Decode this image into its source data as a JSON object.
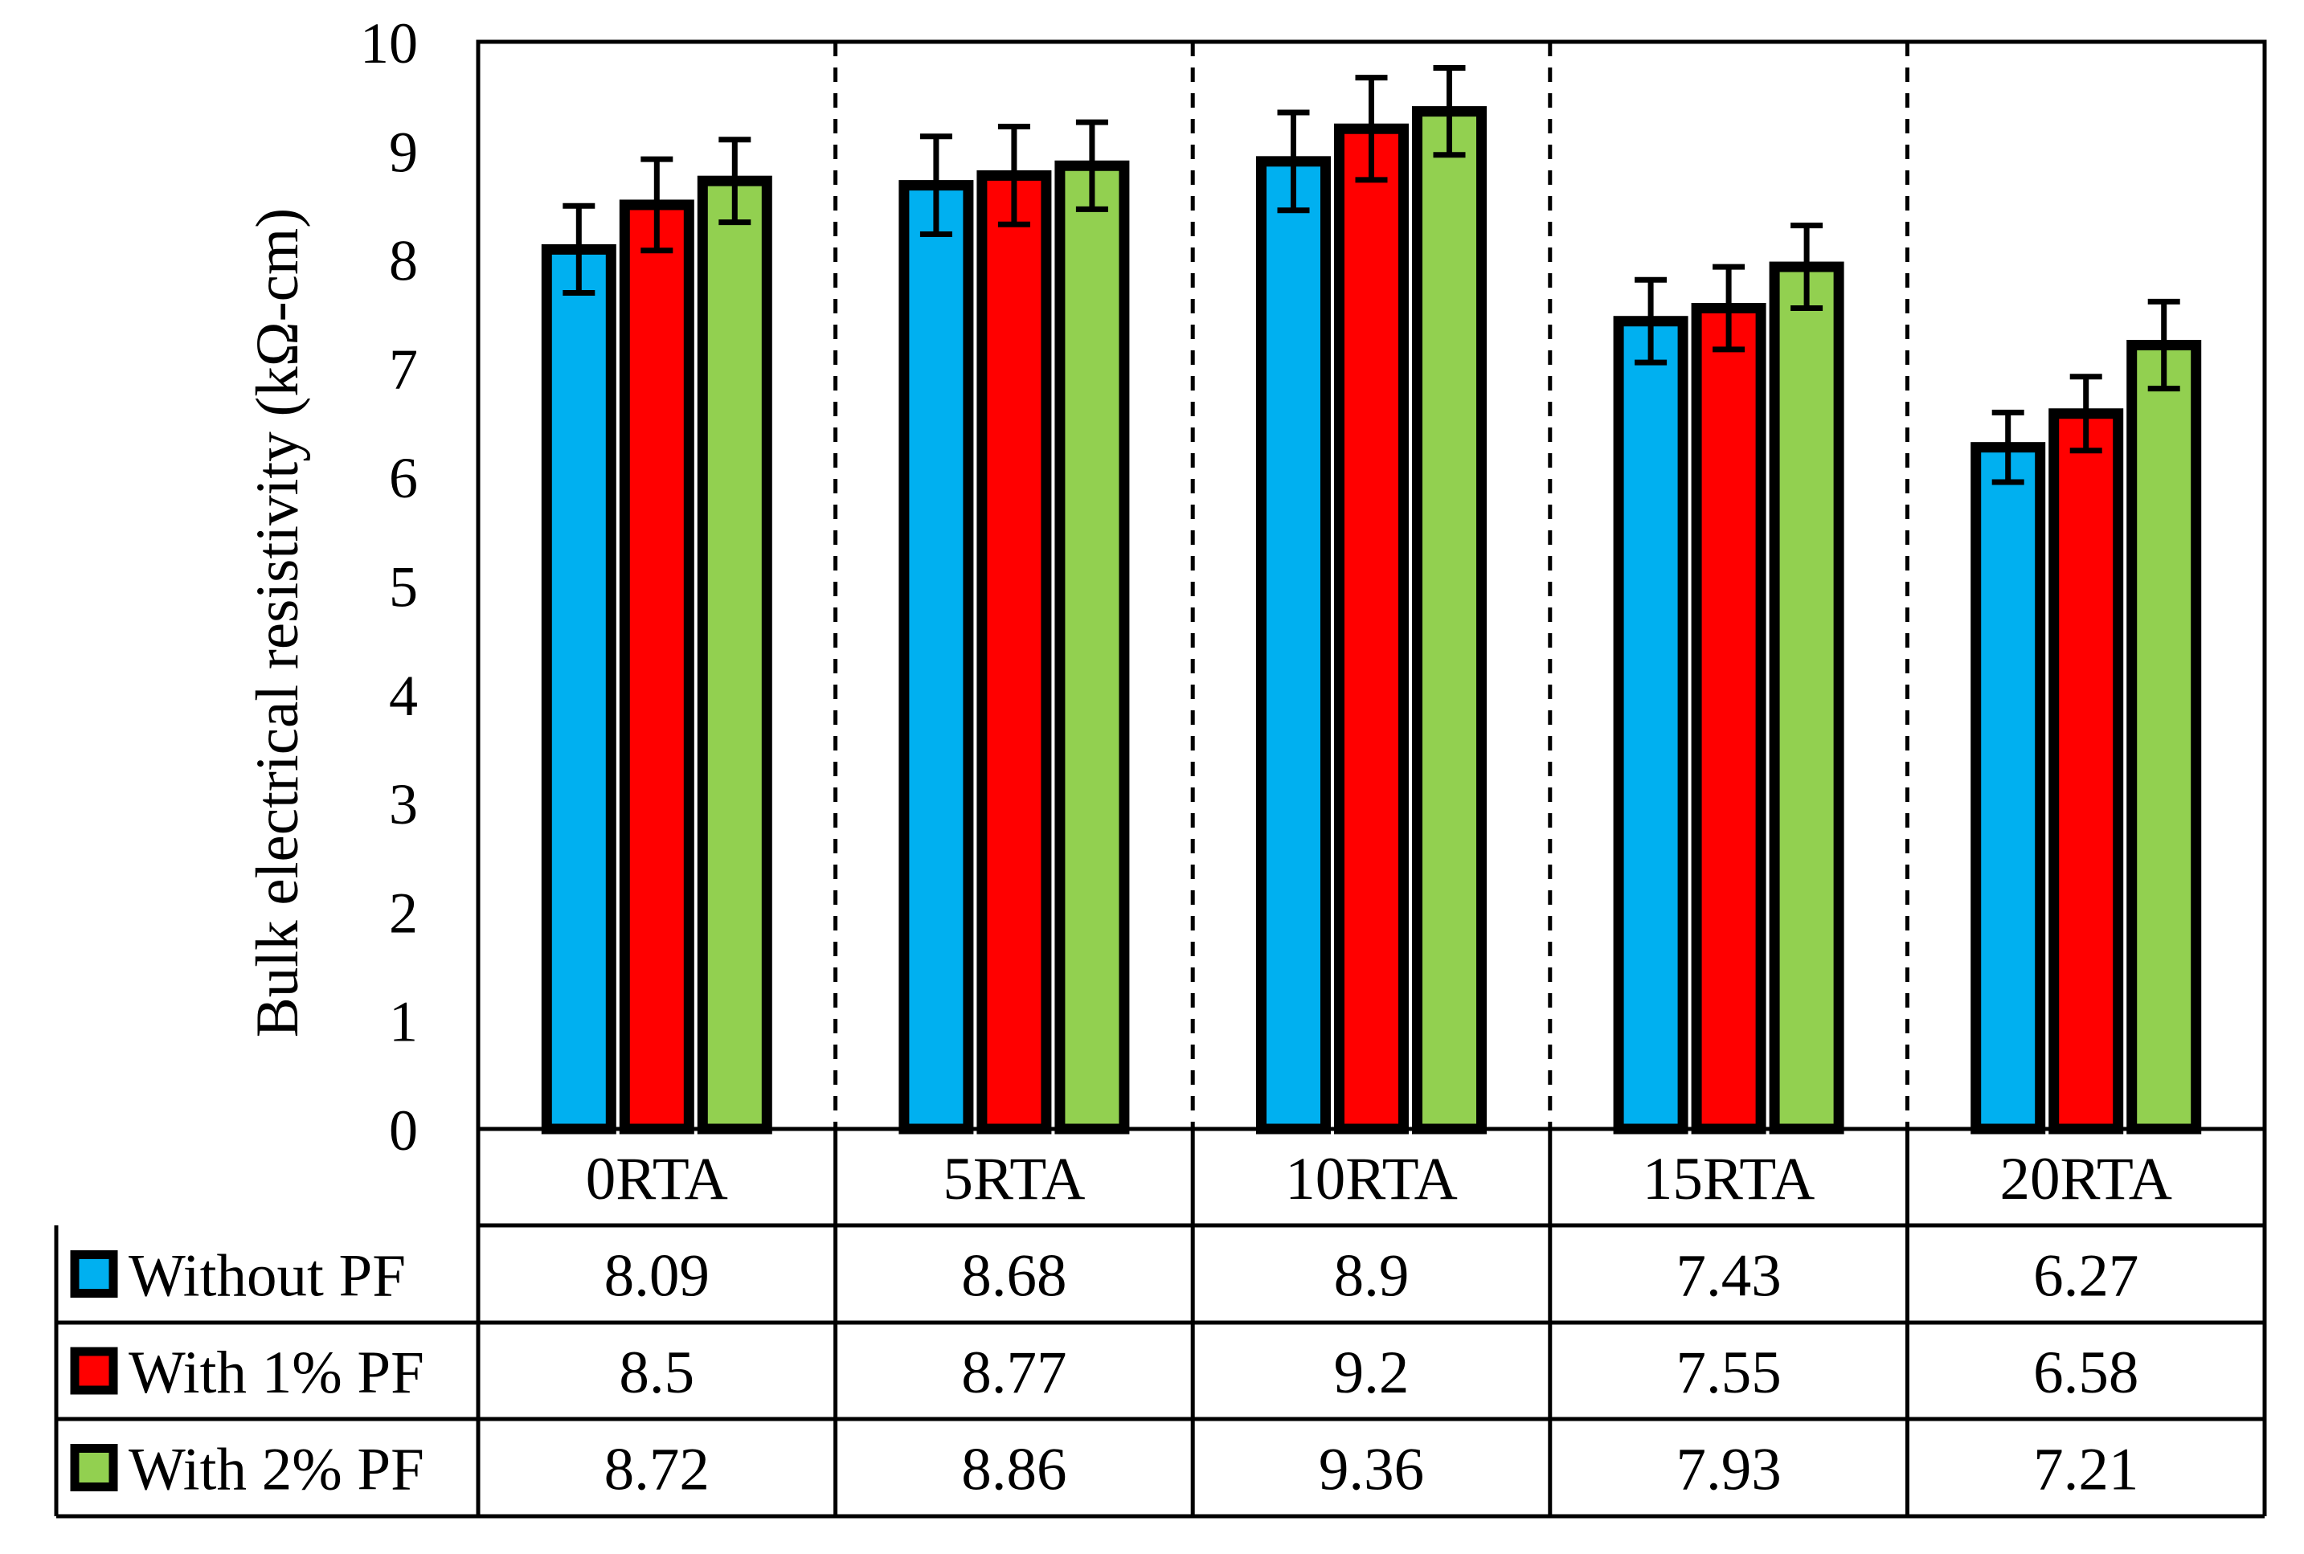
{
  "chart_data": {
    "type": "bar",
    "title": "",
    "xlabel": "",
    "ylabel": "Bulk electrical resistivity (kΩ-cm)",
    "ylim": [
      0,
      10
    ],
    "yticks": [
      "0",
      "1",
      "2",
      "3",
      "4",
      "5",
      "6",
      "7",
      "8",
      "9",
      "10"
    ],
    "grid": false,
    "legend": "data-table-left",
    "categories": [
      "0RTA",
      "5RTA",
      "10RTA",
      "15RTA",
      "20RTA"
    ],
    "series": [
      {
        "name": "Without PF",
        "color": "#00b0f0",
        "values": [
          8.09,
          8.68,
          8.9,
          7.43,
          6.27
        ],
        "labels": [
          "8.09",
          "8.68",
          "8.9",
          "7.43",
          "6.27"
        ],
        "error": [
          0.4,
          0.45,
          0.45,
          0.38,
          0.32
        ]
      },
      {
        "name": "With 1% PF",
        "color": "#ff0000",
        "values": [
          8.5,
          8.77,
          9.2,
          7.55,
          6.58
        ],
        "labels": [
          "8.5",
          "8.77",
          "9.2",
          "7.55",
          "6.58"
        ],
        "error": [
          0.42,
          0.45,
          0.47,
          0.38,
          0.34
        ]
      },
      {
        "name": "With 2% PF",
        "color": "#92d050",
        "values": [
          8.72,
          8.86,
          9.36,
          7.93,
          7.21
        ],
        "labels": [
          "8.72",
          "8.86",
          "9.36",
          "7.93",
          "7.21"
        ],
        "error": [
          0.38,
          0.4,
          0.4,
          0.38,
          0.4
        ]
      }
    ]
  }
}
